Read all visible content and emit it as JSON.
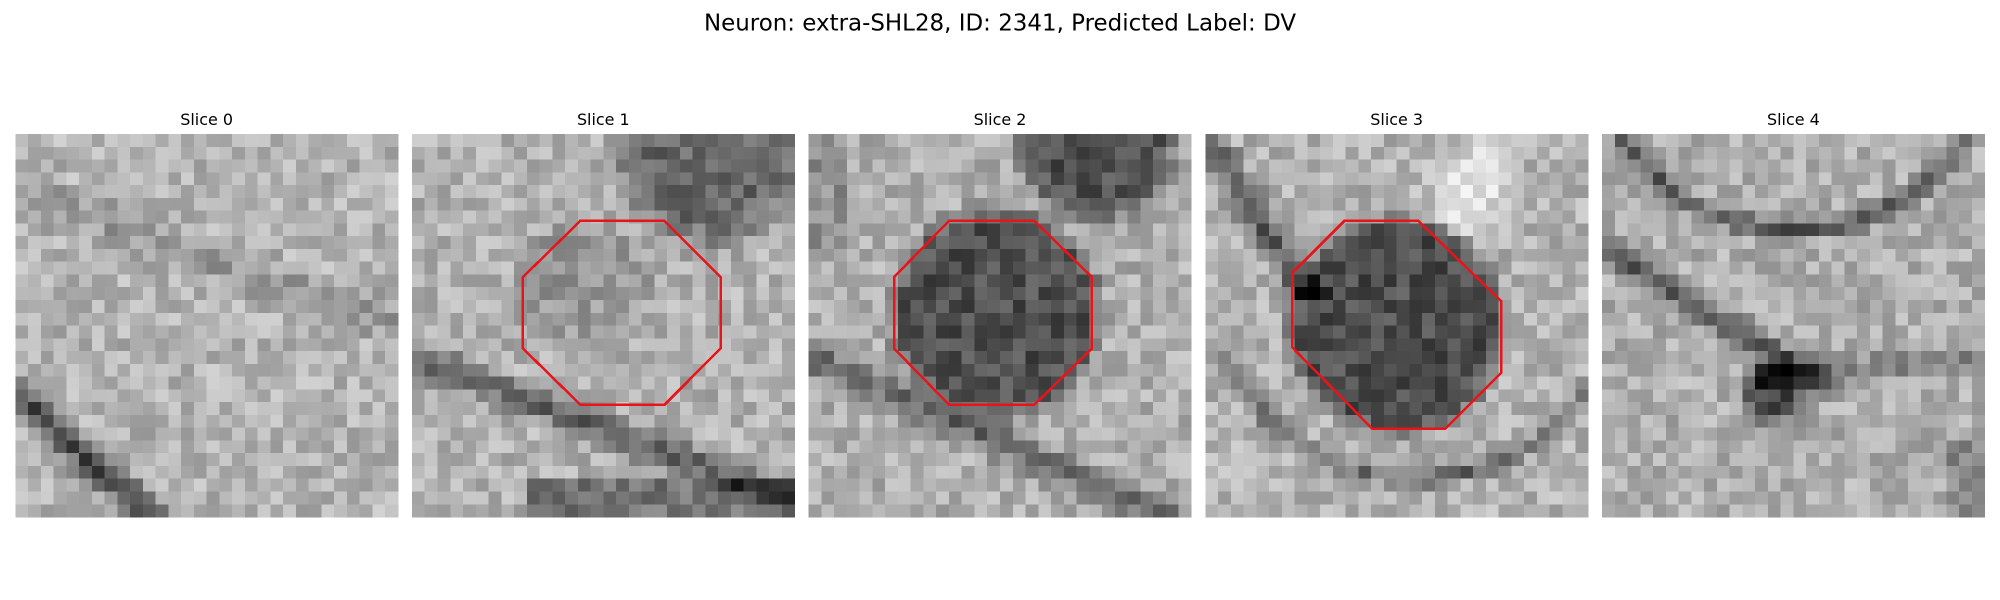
{
  "title": "Neuron: extra-SHL28, ID: 2341, Predicted Label: DV",
  "panels": [
    {
      "title": "Slice 0"
    },
    {
      "title": "Slice 1"
    },
    {
      "title": "Slice 2"
    },
    {
      "title": "Slice 3"
    },
    {
      "title": "Slice 4"
    }
  ]
}
